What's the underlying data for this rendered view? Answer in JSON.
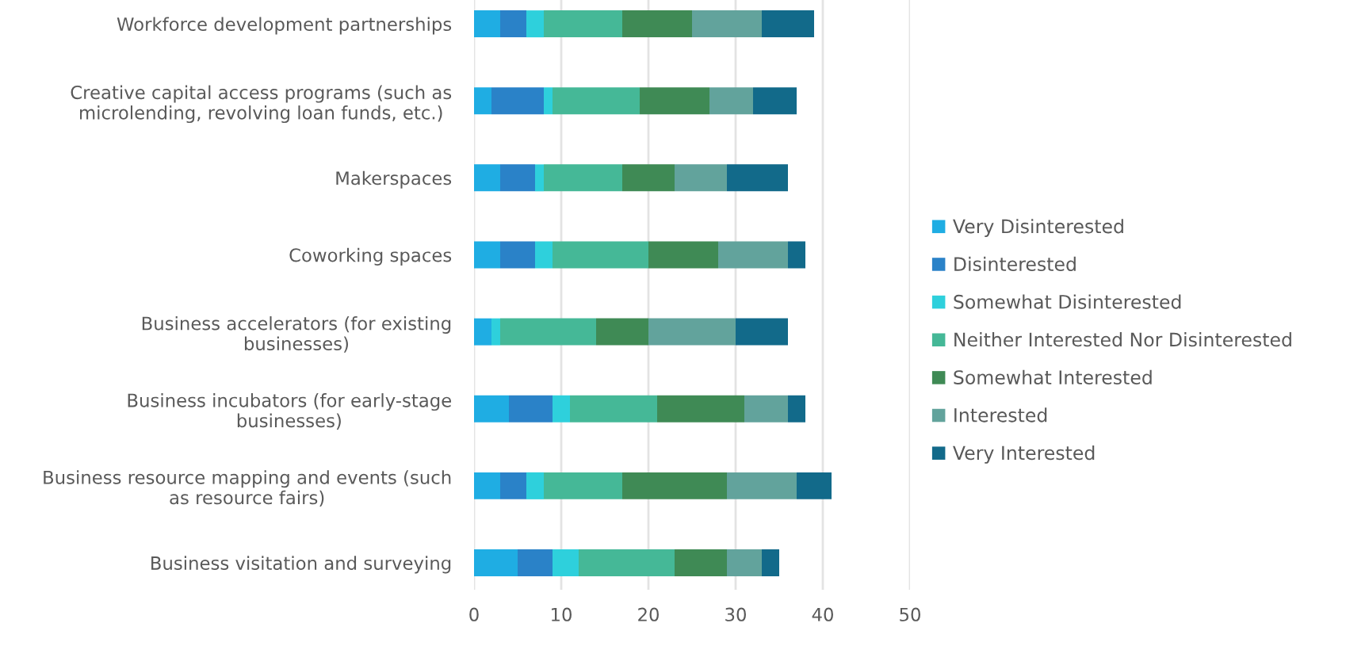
{
  "chart_data": {
    "type": "bar",
    "orientation": "horizontal",
    "stacked": true,
    "categories": [
      "Workforce development partnerships",
      "Creative capital access programs (such as\nmicrolending, revolving loan funds, etc.)",
      "Makerspaces",
      "Coworking spaces",
      "Business accelerators (for existing\nbusinesses)",
      "Business incubators (for early-stage\nbusinesses)",
      "Business resource mapping and events (such\nas resource fairs)",
      "Business visitation and surveying"
    ],
    "series": [
      {
        "name": "Very Disinterested",
        "color": "#1fade3",
        "values": [
          3,
          2,
          3,
          3,
          2,
          4,
          3,
          5
        ]
      },
      {
        "name": "Disinterested",
        "color": "#2a82c8",
        "values": [
          3,
          6,
          4,
          4,
          0,
          5,
          3,
          4
        ]
      },
      {
        "name": "Somewhat Disinterested",
        "color": "#2ed0dc",
        "values": [
          2,
          1,
          1,
          2,
          1,
          2,
          2,
          3
        ]
      },
      {
        "name": "Neither Interested Nor Disinterested",
        "color": "#45b897",
        "values": [
          9,
          10,
          9,
          11,
          11,
          10,
          9,
          11
        ]
      },
      {
        "name": "Somewhat Interested",
        "color": "#3f8a55",
        "values": [
          8,
          8,
          6,
          8,
          6,
          10,
          12,
          6
        ]
      },
      {
        "name": "Interested",
        "color": "#62a39c",
        "values": [
          8,
          5,
          6,
          8,
          10,
          5,
          8,
          4
        ]
      },
      {
        "name": "Very Interested",
        "color": "#126a8a",
        "values": [
          6,
          5,
          7,
          2,
          6,
          2,
          4,
          2
        ]
      }
    ],
    "xlim": [
      0,
      50
    ],
    "xticks": [
      0,
      10,
      20,
      30,
      40,
      50
    ],
    "grid": "x",
    "legend": "right"
  }
}
